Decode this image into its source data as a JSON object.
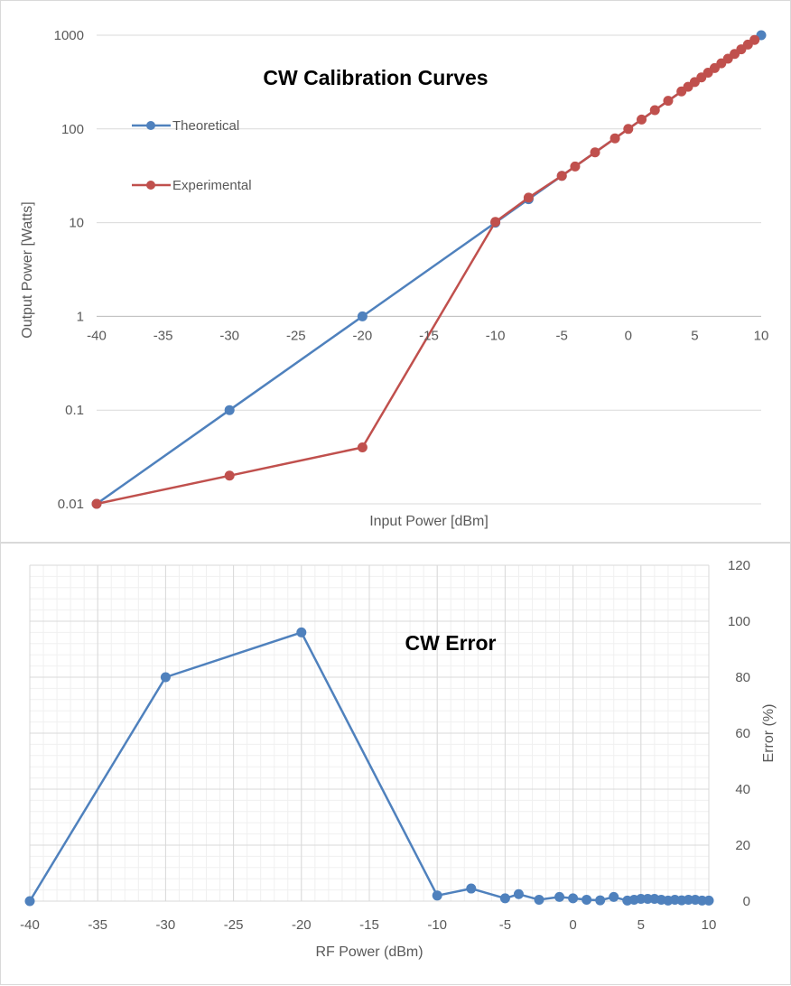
{
  "chart_data": [
    {
      "type": "line",
      "title": "CW Calibration Curves",
      "xlabel": "Input Power [dBm]",
      "ylabel": "Output Power [Watts]",
      "xlim": [
        -40,
        10
      ],
      "ylim": [
        0.01,
        1000
      ],
      "yscale": "log",
      "x_ticks": [
        "-40",
        "-35",
        "-30",
        "-25",
        "-20",
        "-15",
        "-10",
        "-5",
        "0",
        "5",
        "10"
      ],
      "y_ticks": [
        "0.01",
        "0.1",
        "1",
        "10",
        "100",
        "1000"
      ],
      "legend_position": "top-left",
      "series": [
        {
          "name": "Theoretical",
          "color": "#4f81bd",
          "x": [
            -40,
            -30,
            -20,
            -10,
            -7.5,
            -5,
            10
          ],
          "y": [
            0.01,
            0.1,
            1,
            10,
            17.8,
            31.6,
            1000
          ]
        },
        {
          "name": "Experimental",
          "color": "#c0504d",
          "x": [
            -40,
            -30,
            -20,
            -10,
            -7.5,
            -5,
            -4,
            -2.5,
            -1,
            0,
            1,
            2,
            3,
            4,
            4.5,
            5,
            5.5,
            6,
            6.5,
            7,
            7.5,
            8,
            8.5,
            9,
            9.5
          ],
          "y": [
            0.01,
            0.02,
            0.04,
            10.2,
            18.5,
            31.6,
            39.8,
            56.2,
            79.4,
            100,
            125.9,
            158.5,
            199.5,
            251.2,
            281.8,
            316.2,
            354.8,
            398.1,
            446.7,
            501.2,
            562.3,
            631,
            707.9,
            794.3,
            891.3
          ]
        }
      ]
    },
    {
      "type": "line",
      "title": "CW Error",
      "xlabel": "RF Power (dBm)",
      "ylabel": "Error (%)",
      "xlim": [
        -40,
        10
      ],
      "ylim": [
        0,
        120
      ],
      "x_ticks": [
        "-40",
        "-35",
        "-30",
        "-25",
        "-20",
        "-15",
        "-10",
        "-5",
        "0",
        "5",
        "10"
      ],
      "y_ticks": [
        "0",
        "20",
        "40",
        "60",
        "80",
        "100",
        "120"
      ],
      "grid": true,
      "series": [
        {
          "name": "Error",
          "color": "#4f81bd",
          "x": [
            -40,
            -30,
            -20,
            -10,
            -7.5,
            -5,
            -4,
            -2.5,
            -1,
            0,
            1,
            2,
            3,
            4,
            4.5,
            5,
            5.5,
            6,
            6.5,
            7,
            7.5,
            8,
            8.5,
            9,
            9.5,
            10
          ],
          "y": [
            0,
            80,
            96,
            2,
            4.5,
            1,
            2.5,
            0.5,
            1.5,
            1,
            0.5,
            0.3,
            1.5,
            0.2,
            0.5,
            0.8,
            0.8,
            0.8,
            0.5,
            0.2,
            0.5,
            0.3,
            0.5,
            0.5,
            0.2,
            0.2
          ]
        }
      ]
    }
  ]
}
